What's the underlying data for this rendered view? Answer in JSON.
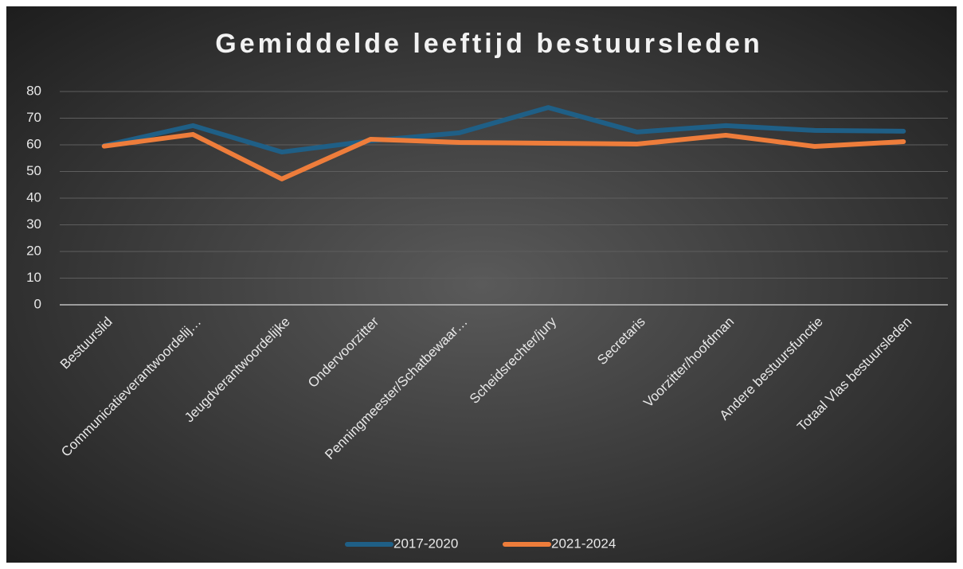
{
  "chart_data": {
    "type": "line",
    "title": "Gemiddelde leeftijd bestuursleden",
    "categories": [
      "Bestuurslid",
      "Communicatieverantwoordelij…",
      "Jeugdverantwoordelijke",
      "Ondervoorzitter",
      "Penningmeester/Schatbewaar…",
      "Scheidsrechter/jury",
      "Secretaris",
      "Voorzitter/hoofdman",
      "Andere bestuursfunctie",
      "Totaal Vlas bestuursleden"
    ],
    "series": [
      {
        "name": "2017-2020",
        "color": "#1f5f86",
        "values": [
          59.7,
          67.2,
          57.3,
          61.5,
          64.5,
          74,
          64.8,
          67.2,
          65.4,
          65.1
        ]
      },
      {
        "name": "2021-2024",
        "color": "#ee7d3b",
        "values": [
          59.5,
          63.9,
          47.2,
          62.1,
          60.9,
          60.6,
          60.3,
          63.6,
          59.4,
          61.2
        ]
      }
    ],
    "ylim": [
      0,
      80
    ],
    "yticks": [
      0,
      10,
      20,
      30,
      40,
      50,
      60,
      70,
      80
    ],
    "grid": true,
    "legend": "bottom"
  }
}
